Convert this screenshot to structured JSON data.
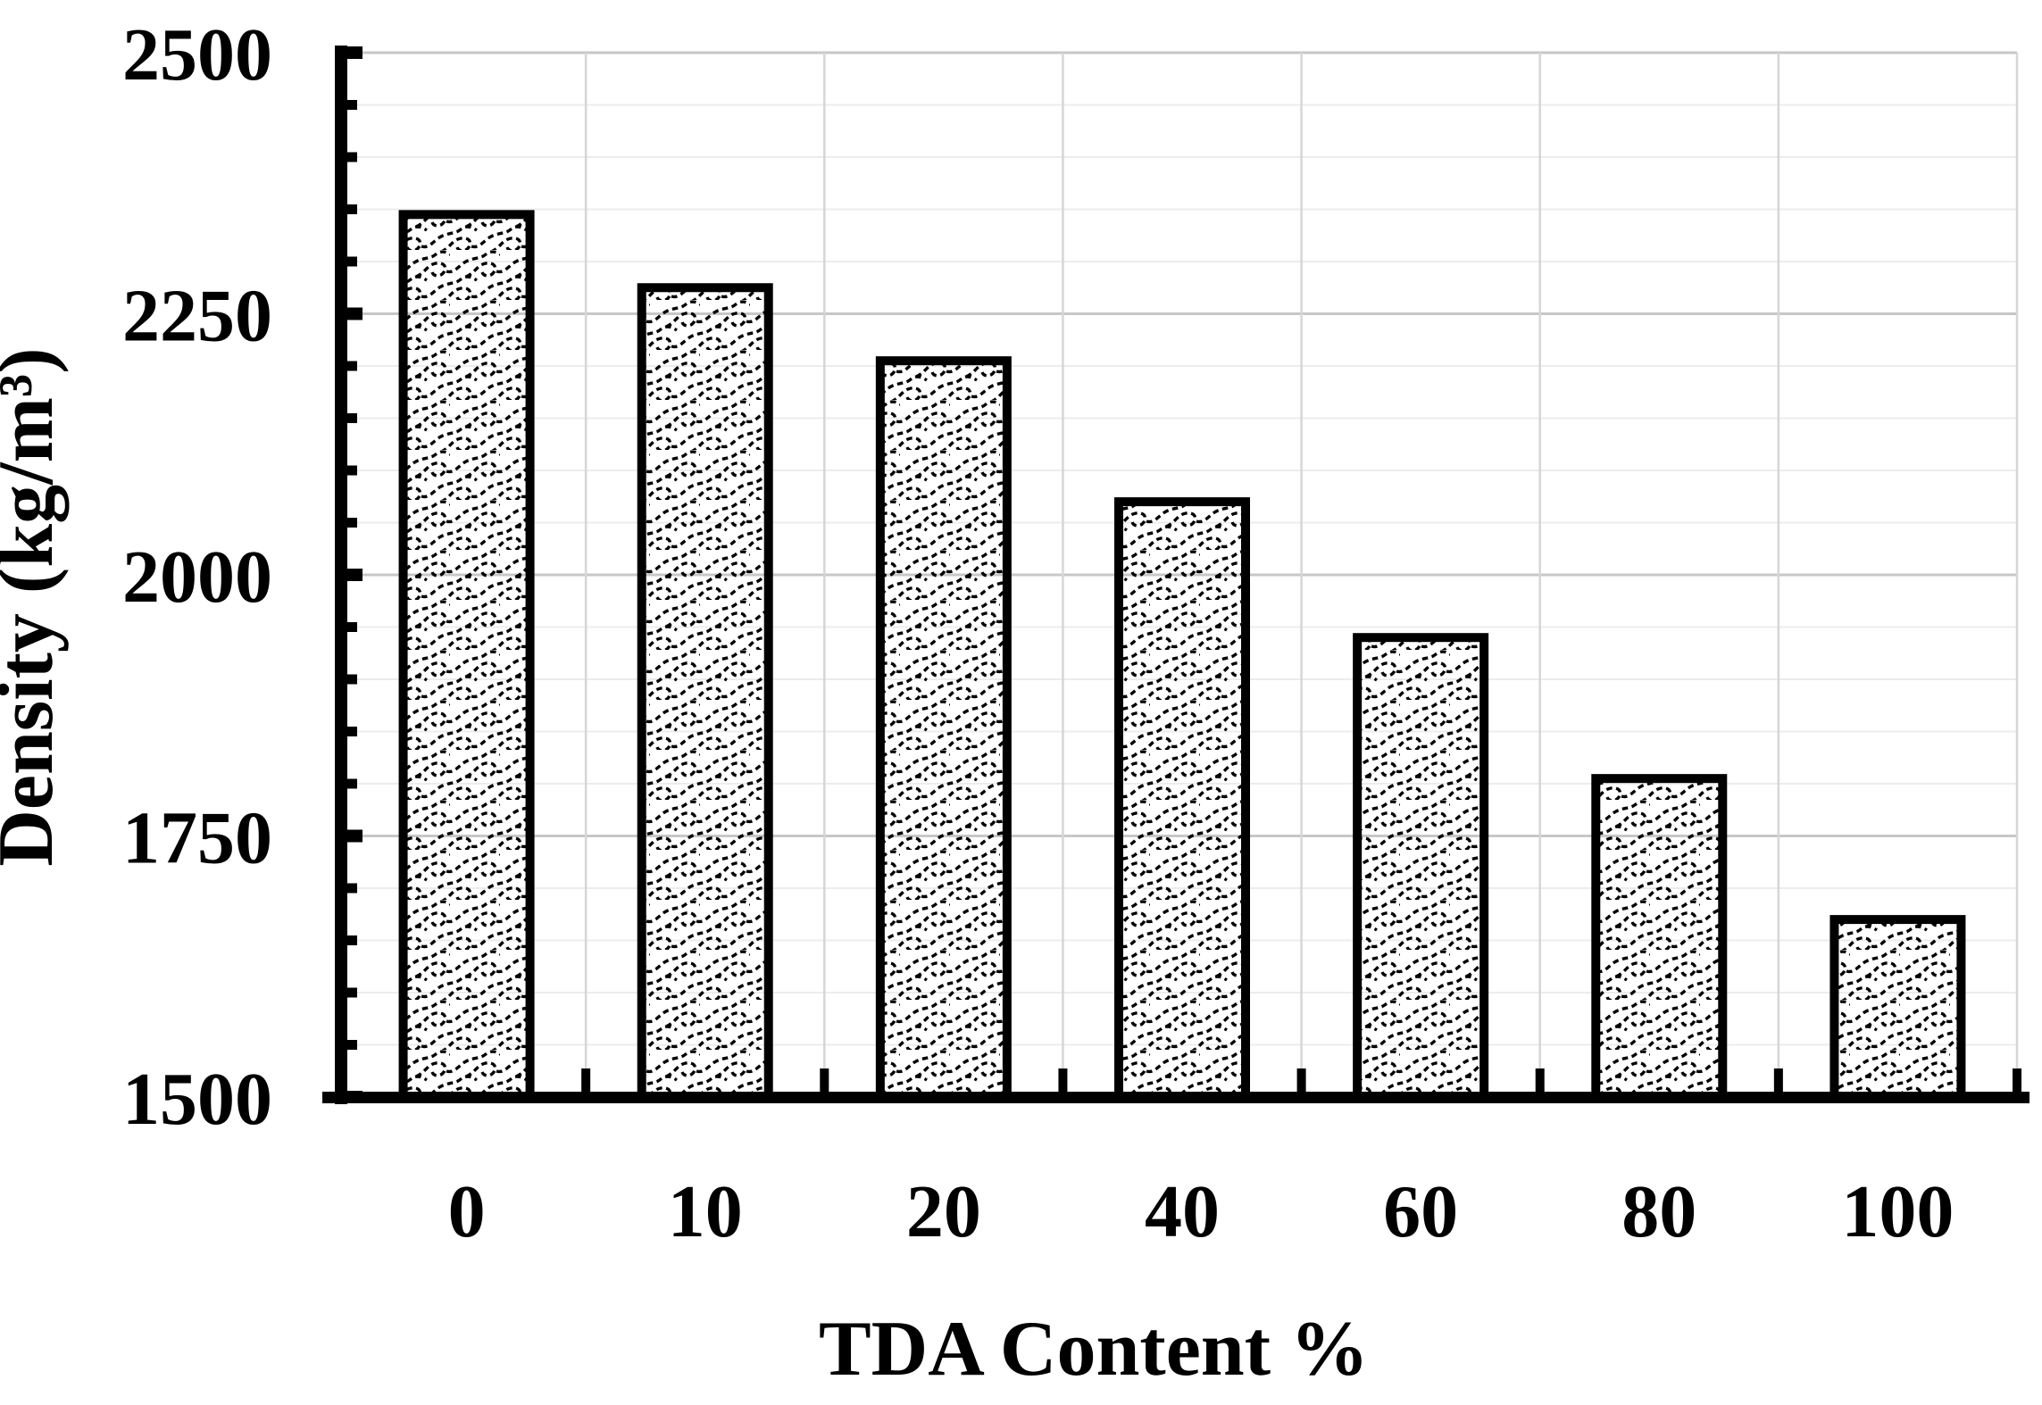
{
  "figure": {
    "kind": "bar chart figure",
    "background": "#ffffff"
  },
  "chart_data": {
    "type": "bar",
    "title": "",
    "xlabel": "TDA Content %",
    "ylabel": "Density (kg/m³)",
    "categories": [
      "0",
      "10",
      "20",
      "40",
      "60",
      "80",
      "100"
    ],
    "values": [
      2345,
      2275,
      2205,
      2070,
      1940,
      1805,
      1670
    ],
    "series_name": "Density",
    "ylim": [
      1500,
      2500
    ],
    "y_major_step": 250,
    "y_minor_step": 50,
    "y_tick_labels": [
      "2500",
      "2250",
      "2000",
      "1750",
      "1500"
    ],
    "y_tick_values": [
      2500,
      2250,
      2000,
      1750,
      1500
    ],
    "grid": "on",
    "gridlines": {
      "horizontal_minor_every": 50,
      "horizontal_major_every": 250,
      "vertical_at_category_boundaries": true
    },
    "legend": "none",
    "bar_fill": "woven dashed black pattern on white",
    "bar_border_color": "#000000",
    "axis_color": "#000000",
    "minor_grid_color": "#ececec",
    "major_grid_color": "#c7c7c7",
    "vertical_grid_color": "#d6d6d6",
    "pattern_stroke_color": "#000000"
  }
}
